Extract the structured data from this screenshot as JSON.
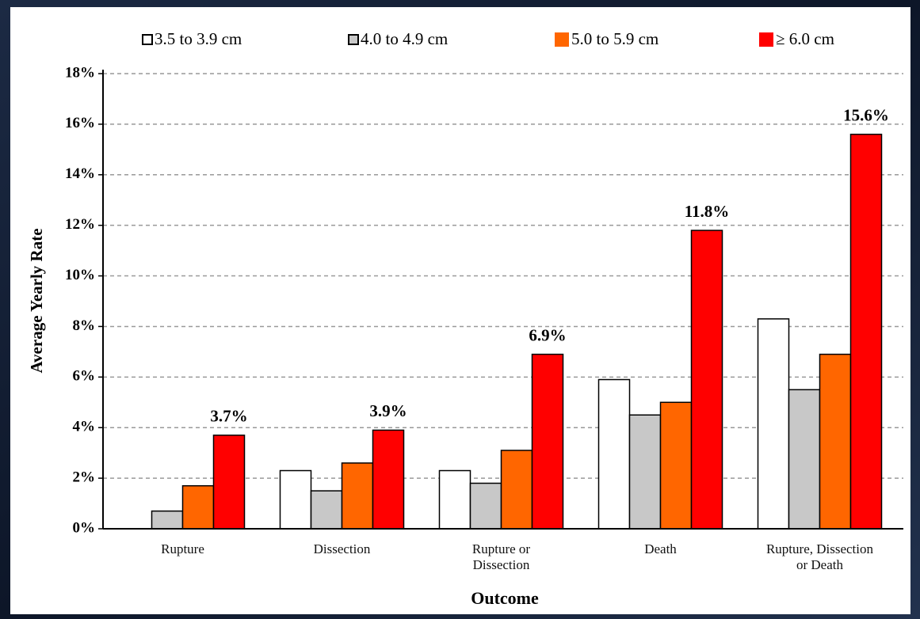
{
  "chart_data": {
    "type": "bar",
    "y_label": "Average Yearly Rate",
    "x_label": "Outcome",
    "categories": [
      "Rupture",
      "Dissection",
      "Rupture or\nDissection",
      "Death",
      "Rupture, Dissection\nor Death"
    ],
    "series": [
      {
        "name": "3.5 to 3.9 cm",
        "color": "#ffffff",
        "values": [
          0,
          2.3,
          2.3,
          5.9,
          8.3
        ]
      },
      {
        "name": "4.0 to 4.9 cm",
        "color": "#c8c8c8",
        "values": [
          0.7,
          1.5,
          1.8,
          4.5,
          5.5
        ]
      },
      {
        "name": "5.0 to 5.9 cm",
        "color": "#ff6600",
        "values": [
          1.7,
          2.6,
          3.1,
          5.0,
          6.9
        ]
      },
      {
        "name": "≥ 6.0 cm",
        "color": "#ff0000",
        "values": [
          3.7,
          3.9,
          6.9,
          11.8,
          15.6
        ],
        "value_labels": [
          "3.7%",
          "3.9%",
          "6.9%",
          "11.8%",
          "15.6%"
        ]
      }
    ],
    "ylim": [
      0,
      18
    ],
    "yticks": [
      {
        "value": 0,
        "label": "0%"
      },
      {
        "value": 2,
        "label": "2%"
      },
      {
        "value": 4,
        "label": "4%"
      },
      {
        "value": 6,
        "label": "6%"
      },
      {
        "value": 8,
        "label": "8%"
      },
      {
        "value": 10,
        "label": "10%"
      },
      {
        "value": 12,
        "label": "12%"
      },
      {
        "value": 14,
        "label": "14%"
      },
      {
        "value": 16,
        "label": "16%"
      },
      {
        "value": 18,
        "label": "18%"
      }
    ],
    "grid": true,
    "legend": "top"
  }
}
